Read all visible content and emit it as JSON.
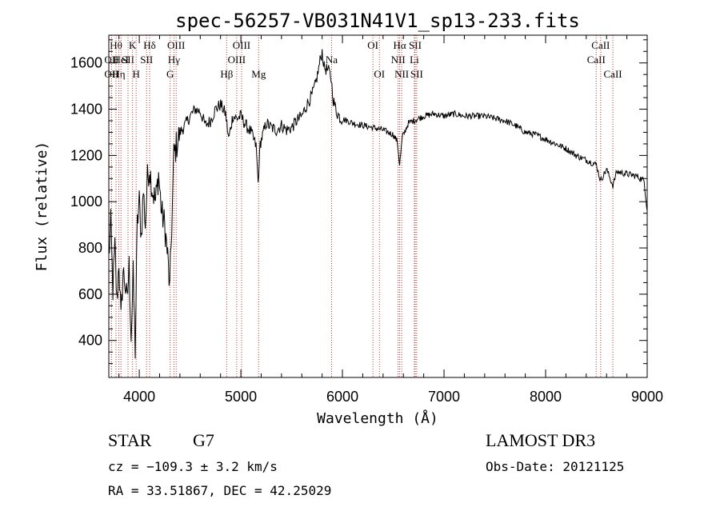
{
  "chart_data": {
    "type": "line",
    "title": "spec-56257-VB031N41V1_sp13-233.fits",
    "xlabel": "Wavelength (Å)",
    "ylabel": "Flux (relative)",
    "xlim": [
      3700,
      9000
    ],
    "ylim": [
      240,
      1720
    ],
    "x_ticks": [
      4000,
      5000,
      6000,
      7000,
      8000,
      9000
    ],
    "y_ticks": [
      400,
      600,
      800,
      1000,
      1200,
      1400,
      1600
    ],
    "line_color": "#000000",
    "marker_color": "#cc3333",
    "spectrum_anchors": [
      [
        3700,
        760
      ],
      [
        3720,
        900
      ],
      [
        3740,
        620
      ],
      [
        3760,
        800
      ],
      [
        3780,
        560
      ],
      [
        3800,
        750
      ],
      [
        3820,
        480
      ],
      [
        3840,
        700
      ],
      [
        3860,
        650
      ],
      [
        3880,
        560
      ],
      [
        3900,
        720
      ],
      [
        3920,
        420
      ],
      [
        3940,
        680
      ],
      [
        3960,
        360
      ],
      [
        3980,
        900
      ],
      [
        4000,
        1000
      ],
      [
        4020,
        850
      ],
      [
        4040,
        1050
      ],
      [
        4060,
        900
      ],
      [
        4080,
        1100
      ],
      [
        4100,
        1150
      ],
      [
        4130,
        1050
      ],
      [
        4160,
        1000
      ],
      [
        4190,
        1120
      ],
      [
        4220,
        950
      ],
      [
        4250,
        900
      ],
      [
        4280,
        760
      ],
      [
        4300,
        620
      ],
      [
        4320,
        900
      ],
      [
        4340,
        1200
      ],
      [
        4370,
        1250
      ],
      [
        4400,
        1300
      ],
      [
        4450,
        1330
      ],
      [
        4500,
        1370
      ],
      [
        4550,
        1400
      ],
      [
        4600,
        1390
      ],
      [
        4650,
        1330
      ],
      [
        4700,
        1350
      ],
      [
        4750,
        1400
      ],
      [
        4800,
        1420
      ],
      [
        4850,
        1380
      ],
      [
        4880,
        1270
      ],
      [
        4920,
        1370
      ],
      [
        4960,
        1360
      ],
      [
        5000,
        1370
      ],
      [
        5050,
        1330
      ],
      [
        5100,
        1300
      ],
      [
        5150,
        1240
      ],
      [
        5170,
        1080
      ],
      [
        5190,
        1250
      ],
      [
        5250,
        1340
      ],
      [
        5300,
        1320
      ],
      [
        5350,
        1310
      ],
      [
        5400,
        1330
      ],
      [
        5450,
        1310
      ],
      [
        5500,
        1320
      ],
      [
        5550,
        1350
      ],
      [
        5600,
        1370
      ],
      [
        5650,
        1420
      ],
      [
        5700,
        1460
      ],
      [
        5730,
        1500
      ],
      [
        5760,
        1560
      ],
      [
        5780,
        1610
      ],
      [
        5800,
        1650
      ],
      [
        5820,
        1580
      ],
      [
        5850,
        1570
      ],
      [
        5870,
        1560
      ],
      [
        5890,
        1530
      ],
      [
        5910,
        1440
      ],
      [
        5940,
        1390
      ],
      [
        5980,
        1360
      ],
      [
        6050,
        1350
      ],
      [
        6100,
        1340
      ],
      [
        6200,
        1330
      ],
      [
        6300,
        1320
      ],
      [
        6400,
        1310
      ],
      [
        6500,
        1290
      ],
      [
        6540,
        1260
      ],
      [
        6563,
        1160
      ],
      [
        6590,
        1280
      ],
      [
        6650,
        1340
      ],
      [
        6700,
        1350
      ],
      [
        6800,
        1370
      ],
      [
        6900,
        1380
      ],
      [
        7000,
        1370
      ],
      [
        7100,
        1380
      ],
      [
        7200,
        1370
      ],
      [
        7300,
        1370
      ],
      [
        7400,
        1370
      ],
      [
        7500,
        1360
      ],
      [
        7600,
        1350
      ],
      [
        7700,
        1330
      ],
      [
        7800,
        1300
      ],
      [
        7900,
        1290
      ],
      [
        8000,
        1270
      ],
      [
        8100,
        1250
      ],
      [
        8200,
        1230
      ],
      [
        8300,
        1200
      ],
      [
        8400,
        1180
      ],
      [
        8500,
        1160
      ],
      [
        8540,
        1090
      ],
      [
        8600,
        1140
      ],
      [
        8662,
        1070
      ],
      [
        8700,
        1130
      ],
      [
        8800,
        1120
      ],
      [
        8900,
        1110
      ],
      [
        8970,
        1090
      ],
      [
        9000,
        960
      ]
    ],
    "line_markers": [
      {
        "wavelength": 3771,
        "label": "Hθ",
        "row": 0
      },
      {
        "wavelength": 3727,
        "label": "OII",
        "row": 1
      },
      {
        "wavelength": 3727,
        "label": "OII",
        "row": 2
      },
      {
        "wavelength": 3798,
        "label": "Hη",
        "row": 2
      },
      {
        "wavelength": 3820,
        "label": "HeI",
        "row": 1
      },
      {
        "wavelength": 3889,
        "label": "SII",
        "row": 1
      },
      {
        "wavelength": 3934,
        "label": "K",
        "row": 0
      },
      {
        "wavelength": 3969,
        "label": "H",
        "row": 2
      },
      {
        "wavelength": 4102,
        "label": "Hδ",
        "row": 0
      },
      {
        "wavelength": 4072,
        "label": "SII",
        "row": 1
      },
      {
        "wavelength": 4341,
        "label": "Hγ",
        "row": 1
      },
      {
        "wavelength": 4363,
        "label": "OIII",
        "row": 0
      },
      {
        "wavelength": 4304,
        "label": "G",
        "row": 2
      },
      {
        "wavelength": 4861,
        "label": "Hβ",
        "row": 2
      },
      {
        "wavelength": 4959,
        "label": "OIII",
        "row": 1
      },
      {
        "wavelength": 5007,
        "label": "OIII",
        "row": 0
      },
      {
        "wavelength": 5175,
        "label": "Mg",
        "row": 2
      },
      {
        "wavelength": 5893,
        "label": "Na",
        "row": 1
      },
      {
        "wavelength": 6300,
        "label": "OI",
        "row": 0
      },
      {
        "wavelength": 6364,
        "label": "OI",
        "row": 2
      },
      {
        "wavelength": 6548,
        "label": "NII",
        "row": 1
      },
      {
        "wavelength": 6583,
        "label": "NII",
        "row": 2
      },
      {
        "wavelength": 6563,
        "label": "Hα",
        "row": 0
      },
      {
        "wavelength": 6716,
        "label": "SII",
        "row": 0
      },
      {
        "wavelength": 6731,
        "label": "SII",
        "row": 2
      },
      {
        "wavelength": 6708,
        "label": "Li",
        "row": 1
      },
      {
        "wavelength": 8498,
        "label": "CaII",
        "row": 1
      },
      {
        "wavelength": 8542,
        "label": "CaII",
        "row": 0
      },
      {
        "wavelength": 8662,
        "label": "CaII",
        "row": 2
      }
    ]
  },
  "info": {
    "object_class": "STAR",
    "subclass": "G7",
    "survey": "LAMOST DR3",
    "redshift": "cz = −109.3 ± 3.2 km/s",
    "obs_date": "Obs-Date: 20121125",
    "coords": "RA =  33.51867, DEC =  42.25029"
  }
}
